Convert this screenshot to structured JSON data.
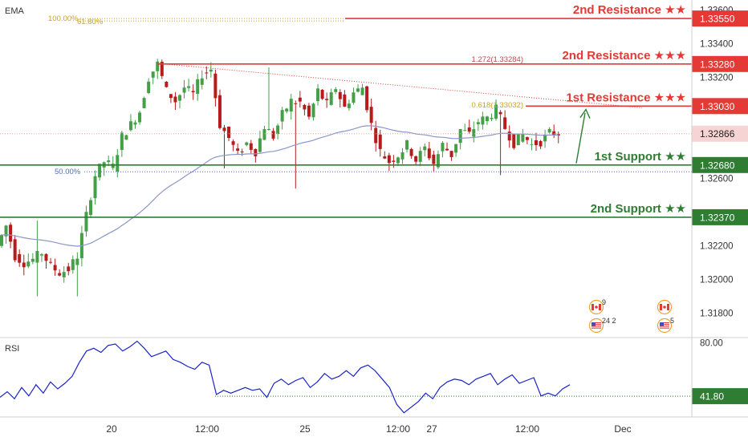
{
  "indicators": {
    "main": "EMA",
    "sub": "RSI"
  },
  "colors": {
    "bull": "#43a047",
    "bear": "#b71c1c",
    "ema": "#8b96c8",
    "resistance": "#e53935",
    "support": "#2e7d32",
    "fib": "#c9a227",
    "rsi": "#1a23c8",
    "rsi_level": "#2e7d32",
    "current": "#e53935",
    "axis_text": "#333333",
    "fib50": "#4f6cc8"
  },
  "chart_data": [
    {
      "type": "candlestick",
      "indicator": "EMA",
      "y_axis": {
        "range": [
          1.3166,
          1.3366
        ],
        "ticks": [
          "1.33400",
          "1.33200",
          "1.32600",
          "1.32200",
          "1.32000",
          "1.31800"
        ],
        "partial_top_tick": "1.33600"
      },
      "x_axis": {
        "ticks": [
          "20",
          "12:00",
          "25",
          "12:00",
          "27",
          "12:00",
          "Dec"
        ]
      },
      "current_price": "1.32866",
      "levels": [
        {
          "label": "2nd Resistance ★★",
          "price": 1.3355,
          "price_label": "1.33550",
          "kind": "resistance"
        },
        {
          "label": "2nd Resistance ★★★",
          "price": 1.3328,
          "price_label": "1.33280",
          "kind": "resistance"
        },
        {
          "label": "1st Resistance ★★★",
          "price": 1.3303,
          "price_label": "1.33030",
          "kind": "resistance"
        },
        {
          "label": "1st Support ★★",
          "price": 1.3268,
          "price_label": "1.32680",
          "kind": "support"
        },
        {
          "label": "2nd Support ★★",
          "price": 1.3237,
          "price_label": "1.32370",
          "kind": "support"
        }
      ],
      "fib_labels": [
        {
          "text": "100.00%",
          "price": 1.3355
        },
        {
          "text": "61.80%",
          "price": 1.3355
        },
        {
          "text": "1.272(1.33284)",
          "price": 1.33284
        },
        {
          "text": "0.618(1.33032)",
          "price": 1.33032
        },
        {
          "text": "50.00%",
          "price": 1.3264
        }
      ],
      "events": [
        {
          "flag": "CA",
          "count": "9"
        },
        {
          "flag": "US",
          "count": "24 2"
        },
        {
          "flag": "CA",
          "count": ""
        },
        {
          "flag": "US",
          "count": "5"
        }
      ],
      "key_prices": [
        1.322,
        1.3232,
        1.3214,
        1.321,
        1.3212,
        1.3216,
        1.3208,
        1.3204,
        1.3206,
        1.3214,
        1.3238,
        1.3262,
        1.327,
        1.3267,
        1.3285,
        1.3292,
        1.33,
        1.332,
        1.3328,
        1.3312,
        1.3306,
        1.3314,
        1.331,
        1.3322,
        1.3325,
        1.3292,
        1.3284,
        1.3274,
        1.3281,
        1.3276,
        1.3291,
        1.3285,
        1.3298,
        1.3306,
        1.3305,
        1.3296,
        1.3312,
        1.3304,
        1.3314,
        1.3302,
        1.3311,
        1.3314,
        1.3292,
        1.3276,
        1.327,
        1.3274,
        1.328,
        1.3271,
        1.3278,
        1.3269,
        1.328,
        1.3274,
        1.3289,
        1.3286,
        1.3294,
        1.3296,
        1.3301,
        1.329,
        1.3281,
        1.3286,
        1.328,
        1.3282,
        1.3287,
        1.3287
      ]
    },
    {
      "type": "line",
      "indicator": "RSI",
      "y_axis": {
        "range": [
          27,
          83
        ],
        "ticks": [
          "80.00"
        ]
      },
      "level": {
        "value": 41.8,
        "label": "41.80"
      },
      "series": [
        {
          "values": [
            41,
            45,
            40,
            48,
            42,
            50,
            44,
            52,
            47,
            51,
            56,
            66,
            74,
            76,
            73,
            78,
            79,
            74,
            77,
            81,
            76,
            70,
            72,
            74,
            68,
            66,
            63,
            61,
            66,
            64,
            43,
            46,
            44,
            46,
            48,
            46,
            47,
            41,
            51,
            54,
            50,
            53,
            55,
            48,
            52,
            58,
            54,
            56,
            60,
            56,
            62,
            64,
            60,
            54,
            48,
            36,
            30,
            34,
            38,
            44,
            40,
            48,
            52,
            54,
            53,
            50,
            54,
            56,
            58,
            50,
            54,
            57,
            51,
            53,
            55,
            42,
            44,
            42,
            47,
            50
          ]
        }
      ]
    }
  ]
}
